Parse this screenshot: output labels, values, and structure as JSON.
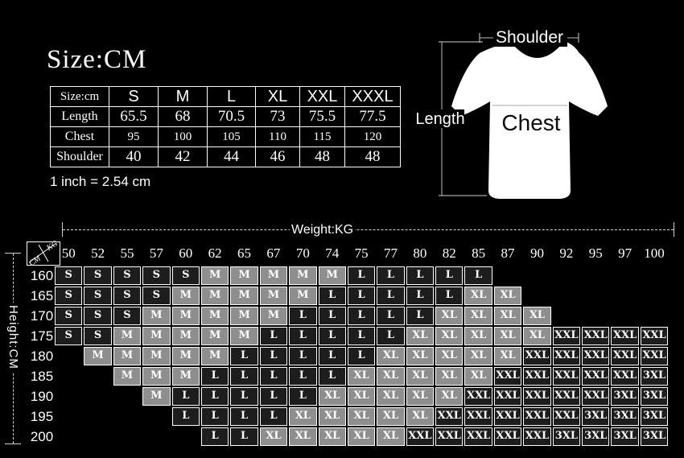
{
  "title": "Size:CM",
  "inch_note": "1 inch = 2.54 cm",
  "size_table": {
    "header": [
      "Size:cm",
      "S",
      "M",
      "L",
      "XL",
      "XXL",
      "XXXL"
    ],
    "rows": [
      {
        "label": "Length",
        "values": [
          "65.5",
          "68",
          "70.5",
          "73",
          "75.5",
          "77.5"
        ]
      },
      {
        "label": "Chest",
        "values": [
          "95",
          "100",
          "105",
          "110",
          "115",
          "120"
        ]
      },
      {
        "label": "Shoulder",
        "values": [
          "40",
          "42",
          "44",
          "46",
          "48",
          "48"
        ]
      }
    ]
  },
  "shirt_diagram": {
    "shoulder_label": "Shoulder",
    "length_label": "Length",
    "chest_label": "Chest"
  },
  "weight_axis_label": "Weight:KG",
  "height_axis_label": "Height:CM",
  "corner": {
    "top_unit": "KG",
    "bottom_unit": "CM"
  },
  "matrix": {
    "weights": [
      "50",
      "52",
      "55",
      "57",
      "60",
      "62",
      "65",
      "67",
      "70",
      "74",
      "75",
      "77",
      "80",
      "82",
      "85",
      "87",
      "90",
      "92",
      "95",
      "97",
      "100"
    ],
    "heights": [
      "160",
      "165",
      "170",
      "175",
      "180",
      "185",
      "190",
      "195",
      "200"
    ],
    "rows": [
      [
        "S",
        "S",
        "S",
        "S",
        "S",
        "M",
        "M",
        "M",
        "M",
        "M",
        "L",
        "L",
        "L",
        "L",
        "L",
        "",
        "",
        "",
        "",
        "",
        ""
      ],
      [
        "S",
        "S",
        "S",
        "S",
        "M",
        "M",
        "M",
        "M",
        "M",
        "L",
        "L",
        "L",
        "L",
        "L",
        "XL",
        "XL",
        "",
        "",
        "",
        "",
        ""
      ],
      [
        "S",
        "S",
        "S",
        "M",
        "M",
        "M",
        "M",
        "M",
        "L",
        "L",
        "L",
        "L",
        "L",
        "XL",
        "XL",
        "XL",
        "XL",
        "",
        "",
        "",
        ""
      ],
      [
        "S",
        "S",
        "M",
        "M",
        "M",
        "M",
        "M",
        "L",
        "L",
        "L",
        "L",
        "L",
        "XL",
        "XL",
        "XL",
        "XL",
        "XL",
        "XXL",
        "XXL",
        "XXL",
        "XXL"
      ],
      [
        "",
        "M",
        "M",
        "M",
        "M",
        "M",
        "L",
        "L",
        "L",
        "L",
        "L",
        "XL",
        "XL",
        "XL",
        "XL",
        "XL",
        "XXL",
        "XXL",
        "XXL",
        "XXL",
        "XXL"
      ],
      [
        "",
        "",
        "M",
        "M",
        "M",
        "L",
        "L",
        "L",
        "L",
        "L",
        "XL",
        "XL",
        "XL",
        "XL",
        "XL",
        "XXL",
        "XXL",
        "XXL",
        "XXL",
        "XXL",
        "3XL"
      ],
      [
        "",
        "",
        "",
        "M",
        "L",
        "L",
        "L",
        "L",
        "L",
        "XL",
        "XL",
        "XL",
        "XL",
        "XL",
        "XXL",
        "XXL",
        "XXL",
        "XXL",
        "XXL",
        "3XL",
        "3XL"
      ],
      [
        "",
        "",
        "",
        "",
        "L",
        "L",
        "L",
        "L",
        "XL",
        "XL",
        "XL",
        "XL",
        "XL",
        "XXL",
        "XXL",
        "XXL",
        "XXL",
        "XXL",
        "3XL",
        "3XL",
        "3XL"
      ],
      [
        "",
        "",
        "",
        "",
        "",
        "L",
        "L",
        "XL",
        "XL",
        "XL",
        "XL",
        "XL",
        "XXL",
        "XXL",
        "XXL",
        "XXL",
        "XXL",
        "3XL",
        "3XL",
        "3XL",
        "3XL"
      ]
    ],
    "cell_colors": {
      "S": "#1d1d1d",
      "M": "#8e8e8e",
      "L": "#1d1d1d",
      "XL": "#8e8e8e",
      "XXL": "#1d1d1d",
      "3XL": "#1d1d1d"
    }
  },
  "colors": {
    "background": "#000000",
    "grid_border": "#ffffff",
    "dark_cell": "#1d1d1d",
    "light_cell": "#8e8e8e",
    "value_text": "#8f8f8f"
  }
}
